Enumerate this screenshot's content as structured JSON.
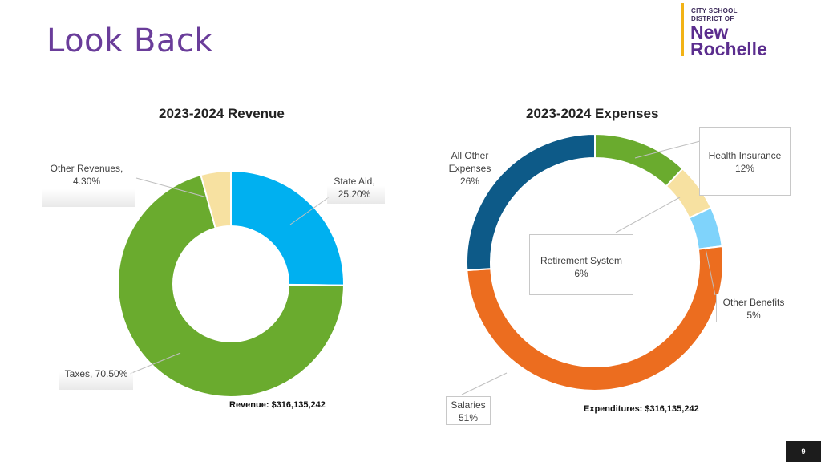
{
  "slide": {
    "title": "Look Back",
    "page_number": "9",
    "logo": {
      "line1": "CITY SCHOOL",
      "line2": "DISTRICT OF",
      "line3": "New",
      "line4": "Rochelle",
      "bar_color": "#f2b316",
      "text_color": "#5b2d8e"
    }
  },
  "chart_data": [
    {
      "type": "pie",
      "variant": "donut",
      "title": "2023-2024 Revenue",
      "summary": "Revenue: $316,135,242",
      "slices": [
        {
          "name": "State Aid",
          "value": 25.2,
          "label": "State Aid,",
          "value_label": "25.20%",
          "color": "#00b0f0"
        },
        {
          "name": "Taxes",
          "value": 70.5,
          "label": "Taxes, 70.50%",
          "color": "#6aab2e"
        },
        {
          "name": "Other Revenues",
          "value": 4.3,
          "label": "Other Revenues,",
          "value_label": "4.30%",
          "color": "#f7e1a1"
        }
      ]
    },
    {
      "type": "pie",
      "variant": "donut",
      "title": "2023-2024 Expenses",
      "summary": "Expenditures: $316,135,242",
      "slices": [
        {
          "name": "Health Insurance",
          "value": 12,
          "label": "Health Insurance",
          "value_label": "12%",
          "color": "#6aab2e"
        },
        {
          "name": "Retirement System",
          "value": 6,
          "label": "Retirement System",
          "value_label": "6%",
          "color": "#f7e1a1"
        },
        {
          "name": "Other Benefits",
          "value": 5,
          "label": "Other Benefits",
          "value_label": "5%",
          "color": "#7fd3fb"
        },
        {
          "name": "Salaries",
          "value": 51,
          "label": "Salaries",
          "value_label": "51%",
          "color": "#ec6d1f"
        },
        {
          "name": "All Other Expenses",
          "value": 26,
          "label": "All Other Expenses",
          "value_label": "26%",
          "color": "#0d5a88"
        }
      ]
    }
  ]
}
